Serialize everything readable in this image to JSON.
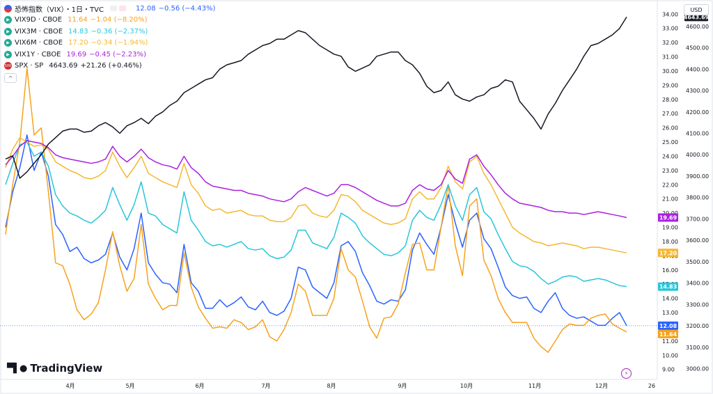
{
  "header": {
    "title": "恐怖指数（VIX）・1日・TVC",
    "price": "12.08",
    "change": "−0.56 (−4.43%)"
  },
  "legend": [
    {
      "name": "VIX9D · CBOE",
      "price": "11.64",
      "change": "−1.04 (−8.20%)",
      "color": "#f7a21b"
    },
    {
      "name": "VIX3M · CBOE",
      "price": "14.83",
      "change": "−0.36 (−2.37%)",
      "color": "#26c6da"
    },
    {
      "name": "VIX6M · CBOE",
      "price": "17.20",
      "change": "−0.34 (−1.94%)",
      "color": "#f5b731"
    },
    {
      "name": "VIX1Y · CBOE",
      "price": "19.69",
      "change": "−0.45 (−2.23%)",
      "color": "#aa20e0"
    },
    {
      "name": "SPX · SP",
      "price": "4643.69",
      "change": "+21.26 (+0.46%)",
      "color": "#131722"
    }
  ],
  "currency": "USD",
  "branding": "TradingView",
  "icons": {
    "flag": "us-flag-icon",
    "eye": "green-eye-icon",
    "index": "sp500-icon",
    "bolt": "lightning-icon",
    "logo": "tradingview-logo-icon"
  },
  "chart_data": {
    "type": "line",
    "x_tick_labels": [
      "4月",
      "5月",
      "6月",
      "7月",
      "8月",
      "9月",
      "10月",
      "11月",
      "12月",
      "26"
    ],
    "left_axis": {
      "label": "VIX",
      "ylim": [
        8.3,
        34.8
      ],
      "ticks": [
        "9.00",
        "10.00",
        "11.00",
        "12.00",
        "13.00",
        "14.00",
        "15.00",
        "16.00",
        "17.00",
        "18.00",
        "19.00",
        "20.00",
        "21.00",
        "22.00",
        "23.00",
        "24.00",
        "25.00",
        "26.00",
        "27.00",
        "28.00",
        "29.00",
        "30.00",
        "31.00",
        "32.00",
        "33.00",
        "34.00"
      ]
    },
    "right_axis": {
      "label": "SPX",
      "ylim": [
        2950,
        4710
      ],
      "ticks": [
        "3000.00",
        "3100.00",
        "3200.00",
        "3300.00",
        "3400.00",
        "3500.00",
        "3600.00",
        "3700.00",
        "3800.00",
        "3900.00",
        "4000.00",
        "4100.00",
        "4200.00",
        "4300.00",
        "4400.00",
        "4500.00",
        "4600.00"
      ]
    },
    "last_value_labels": [
      {
        "text": "19.69",
        "value": 19.69,
        "axis": "left",
        "color": "#aa20e0"
      },
      {
        "text": "17.20",
        "value": 17.2,
        "axis": "left",
        "color": "#f5b731"
      },
      {
        "text": "14.83",
        "value": 14.83,
        "axis": "left",
        "color": "#26c6da"
      },
      {
        "text": "12.08",
        "value": 12.08,
        "axis": "left",
        "color": "#2962ff"
      },
      {
        "text": "11.64",
        "value": 11.64,
        "axis": "left",
        "color": "#f7a21b"
      },
      {
        "text": "4643.69",
        "value": 4643.69,
        "axis": "right",
        "color": "#131722"
      }
    ],
    "series": [
      {
        "name": "VIX",
        "color": "#2962ff",
        "axis": "left",
        "values": [
          19.0,
          21.5,
          23.2,
          25.5,
          23.0,
          24.3,
          22.6,
          19.2,
          18.5,
          17.3,
          17.6,
          16.8,
          16.5,
          16.7,
          17.1,
          18.6,
          16.9,
          16.0,
          17.5,
          20.0,
          16.5,
          15.7,
          15.1,
          15.0,
          14.4,
          17.8,
          15.1,
          14.5,
          13.3,
          13.3,
          13.9,
          13.4,
          13.7,
          14.1,
          13.4,
          13.2,
          13.8,
          13.0,
          12.8,
          13.1,
          14.0,
          16.2,
          16.0,
          14.8,
          14.4,
          14.0,
          15.1,
          17.7,
          18.0,
          17.3,
          15.8,
          14.9,
          13.8,
          13.6,
          13.9,
          13.8,
          14.6,
          17.4,
          18.6,
          17.8,
          17.1,
          19.0,
          21.3,
          19.3,
          17.6,
          19.5,
          20.0,
          18.2,
          17.5,
          16.2,
          14.8,
          14.2,
          14.0,
          14.1,
          13.3,
          13.0,
          13.8,
          14.4,
          13.3,
          12.8,
          12.6,
          12.7,
          12.4,
          12.1,
          12.1,
          12.6,
          13.0,
          12.08
        ]
      },
      {
        "name": "VIX9D",
        "color": "#f7a21b",
        "axis": "left",
        "values": [
          18.5,
          22.0,
          25.0,
          30.2,
          25.5,
          26.0,
          21.5,
          16.5,
          16.3,
          15.0,
          13.2,
          12.5,
          12.9,
          13.7,
          16.0,
          18.7,
          16.3,
          14.5,
          15.4,
          19.2,
          15.0,
          14.0,
          13.2,
          13.5,
          13.5,
          17.2,
          14.8,
          13.4,
          12.6,
          11.9,
          12.0,
          11.9,
          12.5,
          12.3,
          11.8,
          12.0,
          12.5,
          11.3,
          11.0,
          11.8,
          13.0,
          15.0,
          14.5,
          12.8,
          12.8,
          12.8,
          14.0,
          17.5,
          16.0,
          15.5,
          13.8,
          12.0,
          11.2,
          12.6,
          12.7,
          13.6,
          15.8,
          17.8,
          17.9,
          16.0,
          16.0,
          19.0,
          22.0,
          17.7,
          15.6,
          20.5,
          21.0,
          16.7,
          15.6,
          14.0,
          13.0,
          12.3,
          12.3,
          12.3,
          11.2,
          10.6,
          10.2,
          11.0,
          11.8,
          12.2,
          12.1,
          12.1,
          12.6,
          12.8,
          12.9,
          12.2,
          11.9,
          11.64
        ]
      },
      {
        "name": "VIX3M",
        "color": "#26c6da",
        "axis": "left",
        "values": [
          22.0,
          23.5,
          24.8,
          25.0,
          24.0,
          24.3,
          23.3,
          21.3,
          20.5,
          20.0,
          19.8,
          19.5,
          19.3,
          19.7,
          20.2,
          21.8,
          20.6,
          19.5,
          20.6,
          22.2,
          20.0,
          19.8,
          19.2,
          18.9,
          18.6,
          21.5,
          19.5,
          18.8,
          18.0,
          17.7,
          17.8,
          17.6,
          17.8,
          18.0,
          17.5,
          17.4,
          17.5,
          17.0,
          16.8,
          16.9,
          17.4,
          18.8,
          18.8,
          17.9,
          17.7,
          17.5,
          18.3,
          20.0,
          19.7,
          19.3,
          18.4,
          17.9,
          17.5,
          17.1,
          17.0,
          17.2,
          17.7,
          19.5,
          20.2,
          19.7,
          19.5,
          20.6,
          22.0,
          20.5,
          19.5,
          21.3,
          21.8,
          20.1,
          19.6,
          18.5,
          17.5,
          16.6,
          16.3,
          16.2,
          15.9,
          15.4,
          15.0,
          15.2,
          15.5,
          15.6,
          15.5,
          15.2,
          15.3,
          15.4,
          15.3,
          15.1,
          14.9,
          14.83
        ]
      },
      {
        "name": "VIX6M",
        "color": "#f5b731",
        "axis": "left",
        "values": [
          23.2,
          24.5,
          25.3,
          25.0,
          24.7,
          24.8,
          24.5,
          23.6,
          23.3,
          23.0,
          22.8,
          22.5,
          22.4,
          22.6,
          23.0,
          24.3,
          23.3,
          22.5,
          23.2,
          24.0,
          22.8,
          22.5,
          22.2,
          22.0,
          21.8,
          23.5,
          22.0,
          21.4,
          20.5,
          20.2,
          20.3,
          20.0,
          20.1,
          20.2,
          19.9,
          19.8,
          19.8,
          19.5,
          19.4,
          19.4,
          19.7,
          20.5,
          20.6,
          20.0,
          19.8,
          19.7,
          20.2,
          21.3,
          21.2,
          20.8,
          20.2,
          19.9,
          19.6,
          19.3,
          19.2,
          19.3,
          19.6,
          21.0,
          21.5,
          21.0,
          21.0,
          21.8,
          23.3,
          22.2,
          21.7,
          23.6,
          24.0,
          22.8,
          22.0,
          21.0,
          20.0,
          19.0,
          18.6,
          18.3,
          18.0,
          17.9,
          17.7,
          17.8,
          17.9,
          17.8,
          17.7,
          17.5,
          17.6,
          17.6,
          17.5,
          17.4,
          17.3,
          17.2
        ]
      },
      {
        "name": "VIX1Y",
        "color": "#aa20e0",
        "axis": "left",
        "values": [
          23.4,
          24.0,
          24.7,
          25.1,
          25.0,
          24.9,
          24.6,
          24.1,
          23.9,
          23.8,
          23.7,
          23.6,
          23.5,
          23.6,
          23.8,
          24.7,
          24.0,
          23.6,
          24.0,
          24.5,
          23.9,
          23.6,
          23.4,
          23.3,
          23.1,
          24.0,
          23.2,
          22.8,
          22.2,
          21.9,
          21.8,
          21.7,
          21.6,
          21.6,
          21.4,
          21.3,
          21.2,
          21.0,
          20.9,
          20.8,
          21.0,
          21.5,
          21.8,
          21.6,
          21.4,
          21.2,
          21.4,
          22.0,
          22.0,
          21.8,
          21.5,
          21.2,
          20.9,
          20.7,
          20.5,
          20.5,
          20.7,
          21.6,
          22.0,
          21.7,
          21.6,
          22.0,
          23.0,
          22.4,
          22.1,
          23.8,
          24.1,
          23.3,
          22.7,
          22.0,
          21.4,
          21.0,
          20.7,
          20.6,
          20.5,
          20.4,
          20.2,
          20.1,
          20.1,
          20.0,
          20.0,
          19.9,
          20.0,
          20.1,
          20.0,
          19.9,
          19.8,
          19.69
        ]
      },
      {
        "name": "SPX",
        "color": "#131722",
        "axis": "right",
        "values": [
          3980,
          3995,
          3890,
          3920,
          3960,
          4000,
          4050,
          4080,
          4110,
          4120,
          4120,
          4105,
          4110,
          4135,
          4150,
          4130,
          4100,
          4135,
          4150,
          4170,
          4145,
          4180,
          4200,
          4230,
          4250,
          4290,
          4310,
          4330,
          4350,
          4360,
          4400,
          4420,
          4430,
          4440,
          4470,
          4490,
          4510,
          4520,
          4540,
          4540,
          4560,
          4580,
          4570,
          4540,
          4510,
          4490,
          4470,
          4460,
          4410,
          4390,
          4405,
          4420,
          4460,
          4470,
          4480,
          4480,
          4440,
          4420,
          4380,
          4320,
          4290,
          4300,
          4340,
          4280,
          4260,
          4250,
          4270,
          4280,
          4310,
          4320,
          4350,
          4340,
          4250,
          4210,
          4170,
          4120,
          4190,
          4240,
          4300,
          4350,
          4400,
          4460,
          4510,
          4520,
          4540,
          4560,
          4590,
          4643.69
        ]
      }
    ]
  }
}
